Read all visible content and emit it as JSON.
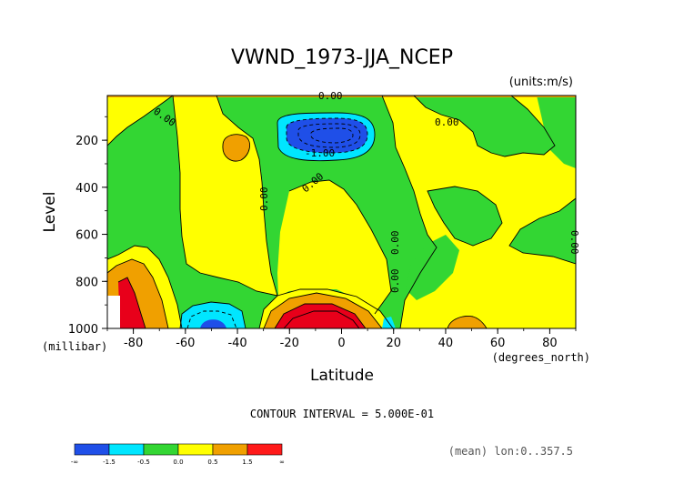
{
  "chart_data": {
    "type": "heatmap",
    "title": "VWND_1973-JJA_NCEP",
    "units": "(units:m/s)",
    "xlabel": "Latitude",
    "xunit": "(degrees_north)",
    "ylabel": "Level",
    "yunit": "(millibar)",
    "xlim": [
      -90,
      90
    ],
    "ylim": [
      1000,
      10
    ],
    "xticks": [
      "-80",
      "-60",
      "-40",
      "-20",
      "0",
      "20",
      "40",
      "60",
      "80"
    ],
    "yticks": [
      "200",
      "400",
      "600",
      "800",
      "1000"
    ],
    "contour_interval_text": "CONTOUR INTERVAL = 5.000E-01",
    "footer_text": "(mean) lon:0..357.5",
    "contour_labels": [
      "0.00",
      "0.00",
      "0.00",
      "0.00",
      "0.00",
      "0.00",
      "0.00",
      "0.00",
      "-1.00"
    ],
    "colorbar": {
      "tick_labels": [
        "-∞",
        "-1.5",
        "-0.5",
        "0.0",
        "0.5",
        "1.5",
        "∞"
      ],
      "colors": [
        "#1f4fe8",
        "#00e6ff",
        "#33d633",
        "#ffff00",
        "#f0a000",
        "#ff1a1a"
      ]
    },
    "regions": {
      "green": "#33d633",
      "yellow": "#ffff00",
      "orange": "#f0a000",
      "red": "#e8001a",
      "cyan": "#00e6ff",
      "blue": "#1f4fe8"
    }
  }
}
